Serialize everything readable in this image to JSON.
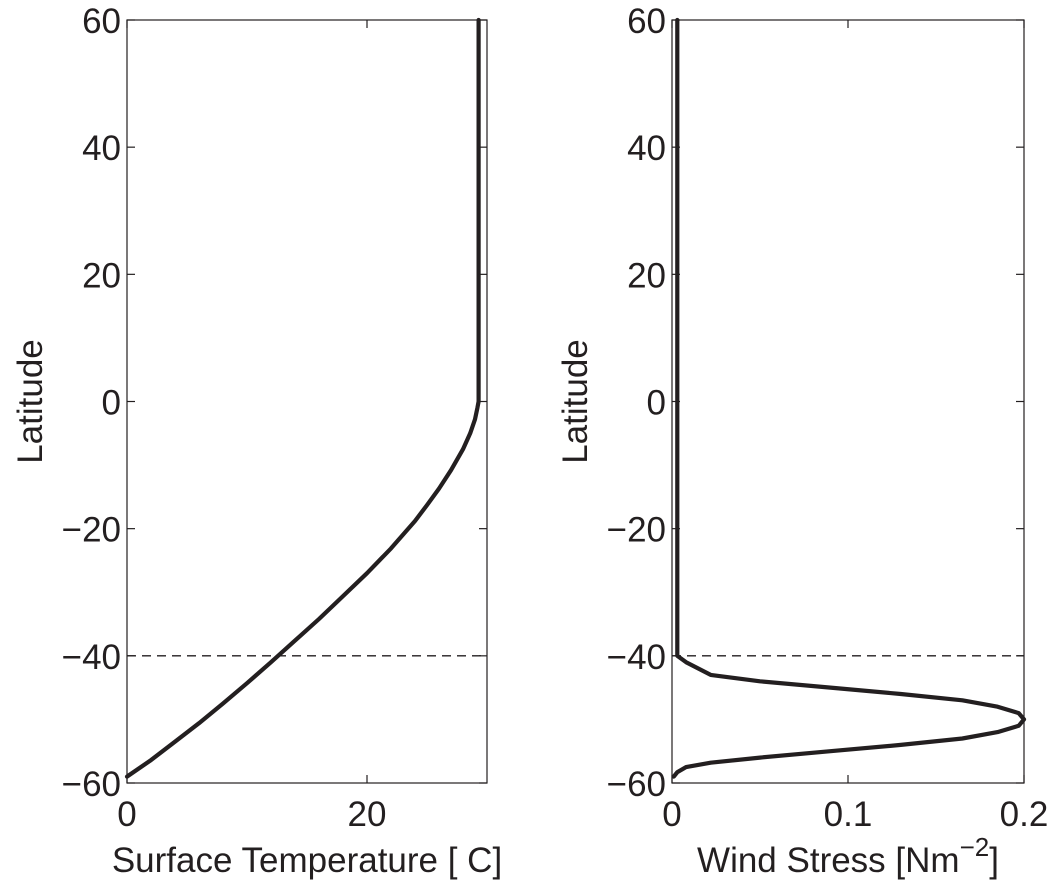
{
  "chart_data": [
    {
      "type": "line",
      "xlabel": "Surface Temperature [ C]",
      "ylabel": "Latitude",
      "xlim": [
        0,
        30
      ],
      "ylim": [
        -60,
        60
      ],
      "xticks": [
        0,
        20
      ],
      "xtick_labels": [
        "0",
        "20"
      ],
      "yticks": [
        -60,
        -40,
        -20,
        0,
        20,
        40,
        60
      ],
      "ytick_labels": [
        "−60",
        "−40",
        "−20",
        "0",
        "20",
        "40",
        "60"
      ],
      "grid": false,
      "hline": {
        "y": -40,
        "style": "dashed"
      },
      "series": [
        {
          "x": [
            0,
            2,
            4,
            6,
            8,
            10,
            12,
            14,
            16,
            18,
            20,
            22,
            24,
            25,
            26,
            27,
            28,
            28.6,
            29,
            29.2,
            29.3,
            29.3,
            29.3,
            29.3,
            29.3,
            29.3,
            29.3,
            29.3
          ],
          "y": [
            -59,
            -56.4,
            -53.5,
            -50.6,
            -47.5,
            -44.3,
            -41,
            -37.6,
            -34.2,
            -30.6,
            -27,
            -23.1,
            -18.8,
            -16.3,
            -13.7,
            -10.8,
            -7.5,
            -5,
            -2.8,
            -1,
            0,
            10,
            20,
            30,
            40,
            50,
            59,
            60
          ]
        }
      ]
    },
    {
      "type": "line",
      "xlabel": "Wind Stress [Nm",
      "xlabel_sup": "−2",
      "xlabel_end": "]",
      "ylabel": "Latitude",
      "xlim": [
        0,
        0.2
      ],
      "ylim": [
        -60,
        60
      ],
      "xticks": [
        0,
        0.1,
        0.2
      ],
      "xtick_labels": [
        "0",
        "0.1",
        "0.2"
      ],
      "yticks": [
        -60,
        -40,
        -20,
        0,
        20,
        40,
        60
      ],
      "ytick_labels": [
        "−60",
        "−40",
        "−20",
        "0",
        "20",
        "40",
        "60"
      ],
      "grid": false,
      "hline": {
        "y": -40,
        "style": "dashed"
      },
      "series": [
        {
          "x": [
            0.001,
            0.003,
            0.008,
            0.022,
            0.05,
            0.09,
            0.13,
            0.165,
            0.185,
            0.197,
            0.2,
            0.197,
            0.185,
            0.165,
            0.13,
            0.09,
            0.05,
            0.022,
            0.008,
            0.003,
            0.003,
            0.003,
            0.003,
            0.003,
            0.003,
            0.003,
            0.003
          ],
          "y": [
            -59,
            -58.3,
            -57.5,
            -56.8,
            -56,
            -55,
            -54,
            -53,
            -52,
            -51,
            -50,
            -49,
            -48,
            -47,
            -46,
            -45,
            -44,
            -43,
            -41,
            -40,
            -20,
            0,
            20,
            40,
            55,
            59,
            60
          ]
        }
      ]
    }
  ]
}
